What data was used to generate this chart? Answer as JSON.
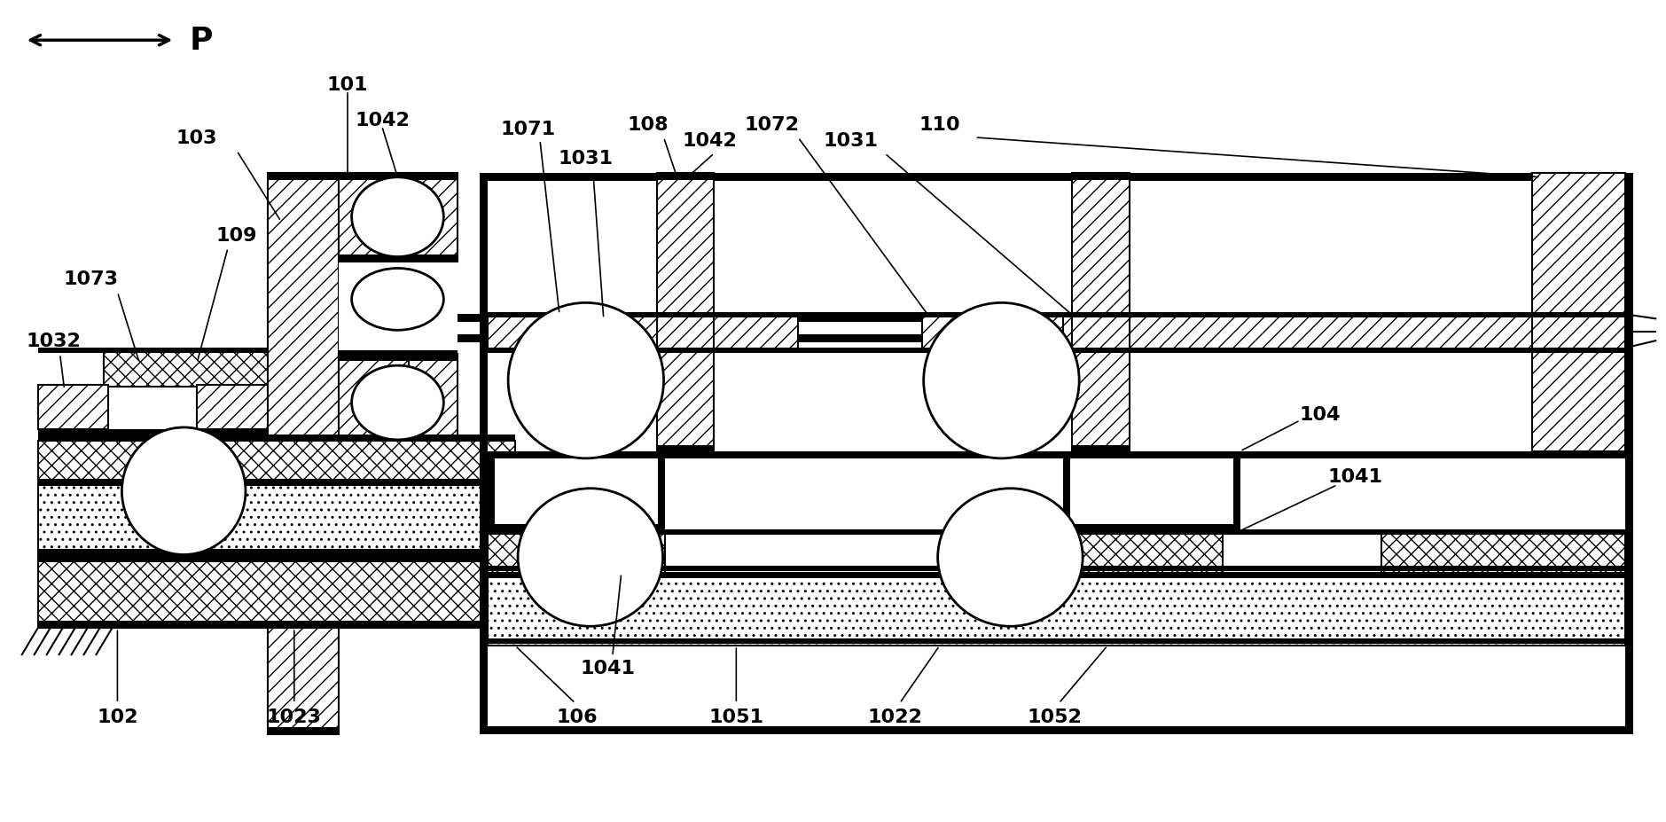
{
  "fig_width": 18.79,
  "fig_height": 9.28,
  "dpi": 100,
  "bg": "#ffffff",
  "lc": "#000000",
  "lw": 1.5,
  "lw_thick": 2.0,
  "fs": 16
}
